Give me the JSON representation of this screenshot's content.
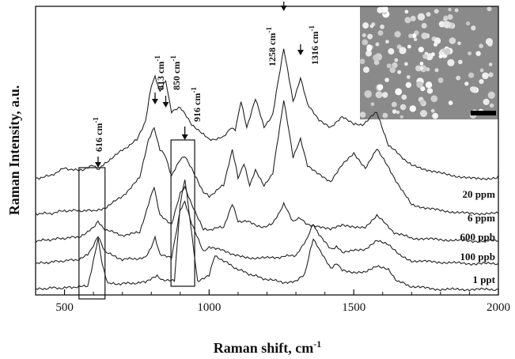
{
  "chart_data": {
    "type": "line",
    "xlabel": "Raman shift, cm",
    "xlabel_sup": "-1",
    "ylabel": "Raman Intensity, a.u.",
    "xlim": [
      400,
      2000
    ],
    "xticks": [
      "500",
      "1000",
      "1500",
      "2000"
    ],
    "yticks_labeled": false,
    "inset": {
      "kind": "SEM micrograph",
      "position": "top-right",
      "scale_bar": true
    },
    "boxes": [
      {
        "x_range": [
          550,
          640
        ]
      },
      {
        "x_range": [
          868,
          950
        ]
      }
    ],
    "peak_annotations": [
      {
        "label": "616 cm",
        "sup": "-1",
        "x": 616,
        "arrow": true
      },
      {
        "label": "813 cm",
        "sup": "-1",
        "x": 813,
        "arrow": true
      },
      {
        "label": "850 cm",
        "sup": "-1",
        "x": 850,
        "arrow": true
      },
      {
        "label": "916 cm",
        "sup": "-1",
        "x": 916,
        "arrow": true
      },
      {
        "label": "1258 cm",
        "sup": "-1",
        "x": 1258,
        "arrow": true
      },
      {
        "label": "1316 cm",
        "sup": "-1",
        "x": 1316,
        "arrow": true
      }
    ],
    "series": [
      {
        "name": "20 ppm",
        "x": [
          400,
          450,
          500,
          550,
          600,
          620,
          640,
          700,
          750,
          780,
          800,
          813,
          830,
          850,
          870,
          900,
          916,
          940,
          980,
          1000,
          1050,
          1075,
          1090,
          1110,
          1130,
          1160,
          1190,
          1220,
          1258,
          1290,
          1316,
          1340,
          1380,
          1420,
          1460,
          1500,
          1530,
          1560,
          1580,
          1620,
          1700,
          1800,
          1900,
          2000
        ],
        "y": [
          0.2,
          0.22,
          0.28,
          0.26,
          0.3,
          0.27,
          0.32,
          0.42,
          0.5,
          0.65,
          0.92,
          1.0,
          0.88,
          0.96,
          0.72,
          0.75,
          0.7,
          0.62,
          0.55,
          0.5,
          0.52,
          0.6,
          0.58,
          0.8,
          0.6,
          0.82,
          0.6,
          0.7,
          1.22,
          0.8,
          0.98,
          0.78,
          0.66,
          0.6,
          0.68,
          0.62,
          0.62,
          0.68,
          0.72,
          0.46,
          0.3,
          0.24,
          0.2,
          0.2
        ]
      },
      {
        "name": "6 ppm",
        "x": [
          400,
          450,
          500,
          550,
          600,
          640,
          700,
          760,
          790,
          810,
          830,
          850,
          870,
          900,
          916,
          940,
          980,
          1000,
          1050,
          1080,
          1100,
          1120,
          1140,
          1160,
          1190,
          1220,
          1258,
          1290,
          1316,
          1340,
          1380,
          1420,
          1460,
          1500,
          1540,
          1580,
          1640,
          1700,
          1800,
          1900,
          2000
        ],
        "y": [
          0.1,
          0.1,
          0.12,
          0.12,
          0.12,
          0.14,
          0.22,
          0.35,
          0.62,
          0.7,
          0.55,
          0.5,
          0.36,
          0.48,
          0.5,
          0.42,
          0.25,
          0.22,
          0.3,
          0.55,
          0.35,
          0.45,
          0.3,
          0.4,
          0.3,
          0.38,
          0.9,
          0.5,
          0.62,
          0.44,
          0.38,
          0.32,
          0.44,
          0.52,
          0.42,
          0.56,
          0.35,
          0.16,
          0.12,
          0.1,
          0.1
        ]
      },
      {
        "name": "600 ppb",
        "x": [
          400,
          450,
          500,
          550,
          580,
          600,
          616,
          640,
          700,
          760,
          790,
          810,
          830,
          870,
          900,
          916,
          940,
          980,
          1000,
          1050,
          1080,
          1100,
          1130,
          1160,
          1190,
          1220,
          1258,
          1290,
          1316,
          1340,
          1380,
          1420,
          1460,
          1500,
          1540,
          1580,
          1640,
          1700,
          1800,
          1900,
          2000
        ],
        "y": [
          0.04,
          0.05,
          0.06,
          0.07,
          0.1,
          0.14,
          0.18,
          0.12,
          0.08,
          0.1,
          0.3,
          0.42,
          0.22,
          0.15,
          0.38,
          0.42,
          0.3,
          0.12,
          0.12,
          0.14,
          0.3,
          0.18,
          0.18,
          0.15,
          0.14,
          0.16,
          0.3,
          0.18,
          0.2,
          0.16,
          0.14,
          0.12,
          0.15,
          0.14,
          0.14,
          0.22,
          0.1,
          0.06,
          0.05,
          0.04,
          0.04
        ]
      },
      {
        "name": "100 ppb",
        "x": [
          400,
          450,
          500,
          550,
          580,
          600,
          616,
          640,
          700,
          780,
          800,
          813,
          830,
          870,
          900,
          916,
          940,
          980,
          1000,
          1040,
          1080,
          1150,
          1220,
          1300,
          1340,
          1360,
          1380,
          1420,
          1440,
          1460,
          1500,
          1540,
          1580,
          1620,
          1660,
          1700,
          1800,
          1900,
          2000
        ],
        "y": [
          0.02,
          0.03,
          0.04,
          0.05,
          0.08,
          0.15,
          0.22,
          0.1,
          0.05,
          0.06,
          0.14,
          0.2,
          0.08,
          0.06,
          0.4,
          0.46,
          0.3,
          0.1,
          0.14,
          0.12,
          0.08,
          0.06,
          0.06,
          0.08,
          0.2,
          0.3,
          0.22,
          0.12,
          0.14,
          0.1,
          0.12,
          0.12,
          0.18,
          0.15,
          0.08,
          0.04,
          0.03,
          0.02,
          0.02
        ]
      },
      {
        "name": "1 ppt",
        "x": [
          400,
          450,
          500,
          550,
          580,
          600,
          616,
          630,
          650,
          700,
          780,
          820,
          840,
          880,
          900,
          916,
          930,
          960,
          1000,
          1020,
          1050,
          1100,
          1150,
          1200,
          1260,
          1300,
          1330,
          1350,
          1360,
          1380,
          1420,
          1440,
          1460,
          1500,
          1540,
          1580,
          1620,
          1650,
          1700,
          1800,
          1900,
          2000
        ],
        "y": [
          0.0,
          0.01,
          0.01,
          0.02,
          0.02,
          0.2,
          0.36,
          0.18,
          0.04,
          0.04,
          0.05,
          0.1,
          0.06,
          0.06,
          0.6,
          0.78,
          0.55,
          0.06,
          0.1,
          0.24,
          0.2,
          0.14,
          0.1,
          0.07,
          0.05,
          0.06,
          0.1,
          0.28,
          0.36,
          0.28,
          0.15,
          0.18,
          0.14,
          0.12,
          0.12,
          0.16,
          0.14,
          0.06,
          0.02,
          0.0,
          0.0,
          0.0
        ]
      }
    ]
  }
}
